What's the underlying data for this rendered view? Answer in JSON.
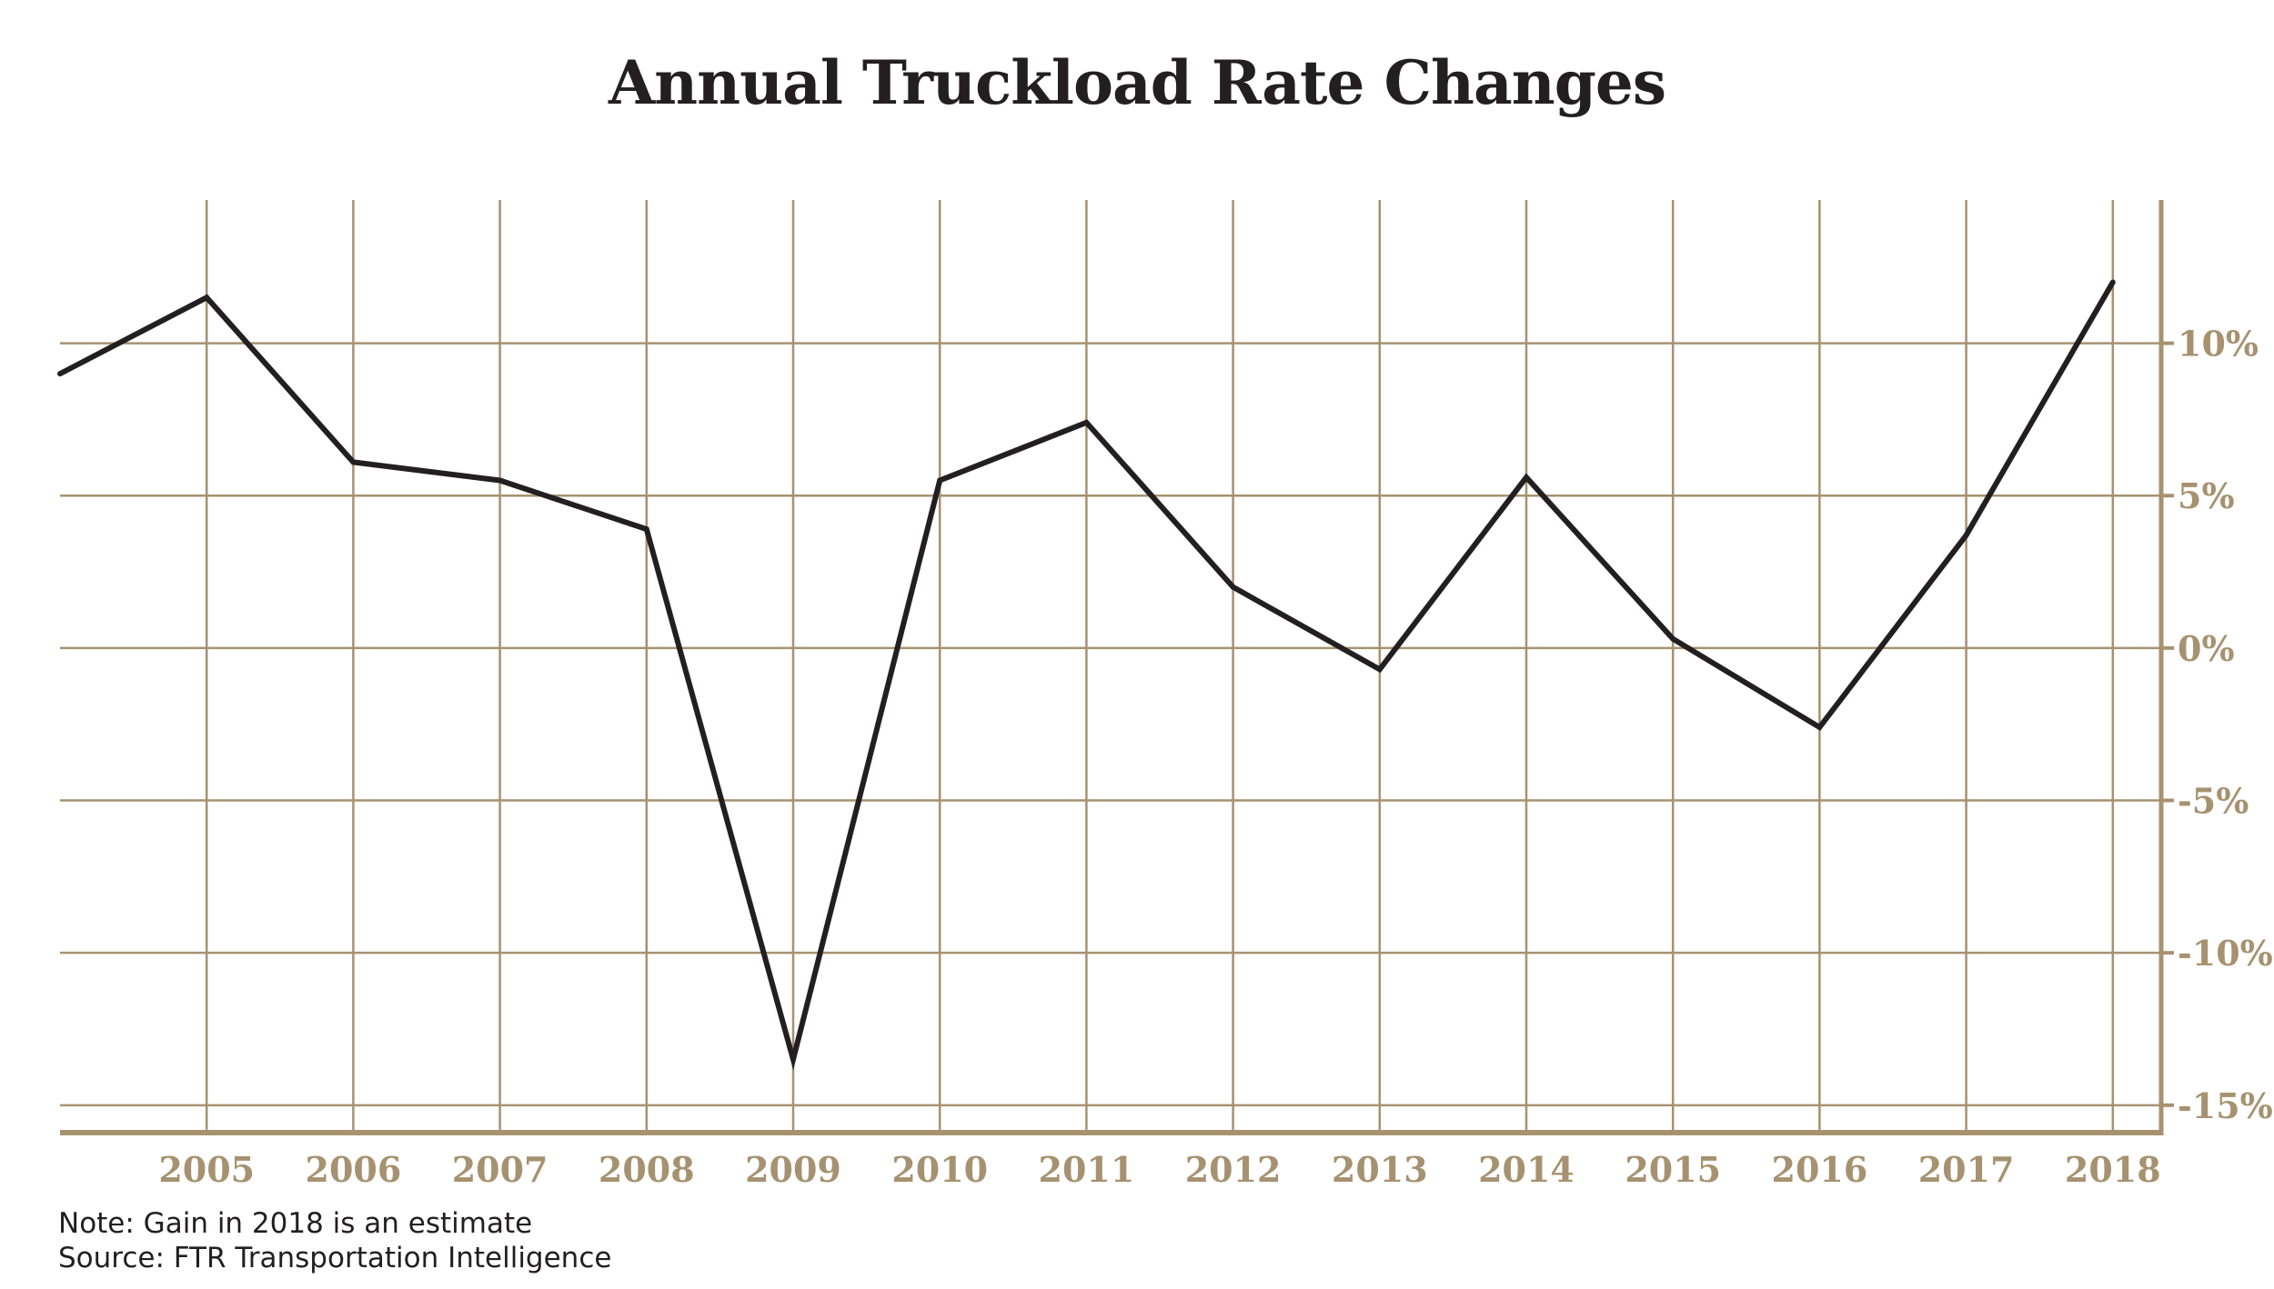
{
  "chart_data": {
    "type": "line",
    "title": "Annual Truckload Rate Changes",
    "xlabel": "",
    "ylabel": "",
    "x": [
      2004,
      2005,
      2006,
      2007,
      2008,
      2009,
      2010,
      2011,
      2012,
      2013,
      2014,
      2015,
      2016,
      2017,
      2018
    ],
    "x_tick_labels": [
      "2005",
      "2006",
      "2007",
      "2008",
      "2009",
      "2010",
      "2011",
      "2012",
      "2013",
      "2014",
      "2015",
      "2016",
      "2017",
      "2018"
    ],
    "y_ticks": [
      10,
      5,
      0,
      -5,
      -10,
      -15
    ],
    "y_tick_labels": [
      "10%",
      "5%",
      "0%",
      "-5%",
      "-10%",
      "-15%"
    ],
    "series": [
      {
        "values": [
          9.0,
          11.5,
          6.1,
          5.5,
          3.9,
          -13.5,
          5.5,
          7.4,
          2.0,
          -0.7,
          5.6,
          0.3,
          -2.6,
          3.7,
          12.0
        ]
      }
    ],
    "ylim": [
      -15.9,
      14.7
    ],
    "xlim": [
      2004,
      2018.33
    ],
    "y_axis_position": "right",
    "grid": true,
    "colors": {
      "grid": "#a69270",
      "axis": "#a69270",
      "line": "#231f20",
      "tick_label": "#a69270"
    }
  },
  "notes": {
    "note": "Note: Gain in 2018 is an estimate",
    "source": "Source: FTR Transportation Intelligence"
  }
}
